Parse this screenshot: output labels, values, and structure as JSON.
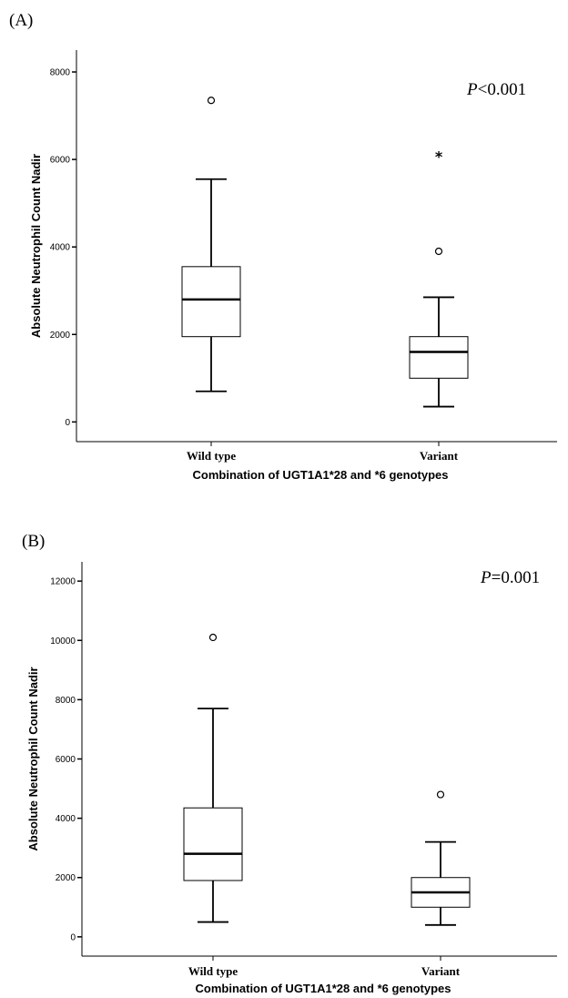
{
  "chart_data": [
    {
      "type": "box",
      "panel_label": "(A)",
      "annotation": {
        "italic": "P",
        "rest": "<0.001"
      },
      "xlabel": "Combination of UGT1A1*28 and *6 genotypes",
      "ylabel": "Absolute Neutrophil Count Nadir",
      "ylim": [
        -450,
        8500
      ],
      "yticks": [
        0,
        2000,
        4000,
        6000,
        8000
      ],
      "categories": [
        "Wild type",
        "Variant"
      ],
      "boxes": [
        {
          "category": "Wild type",
          "whisker_low": 700,
          "q1": 1950,
          "median": 2800,
          "q3": 3550,
          "whisker_high": 5550,
          "outliers": [
            {
              "value": 7350,
              "symbol": "circle"
            }
          ]
        },
        {
          "category": "Variant",
          "whisker_low": 350,
          "q1": 1000,
          "median": 1600,
          "q3": 1950,
          "whisker_high": 2850,
          "outliers": [
            {
              "value": 3900,
              "symbol": "circle"
            },
            {
              "value": 6100,
              "symbol": "star"
            }
          ]
        }
      ]
    },
    {
      "type": "box",
      "panel_label": "(B)",
      "annotation": {
        "italic": "P",
        "rest": "=0.001"
      },
      "xlabel": "Combination of UGT1A1*28 and *6 genotypes",
      "ylabel": "Absolute Neutrophil Count Nadir",
      "ylim": [
        -650,
        12650
      ],
      "yticks": [
        0,
        2000,
        4000,
        6000,
        8000,
        10000,
        12000
      ],
      "categories": [
        "Wild type",
        "Variant"
      ],
      "boxes": [
        {
          "category": "Wild type",
          "whisker_low": 500,
          "q1": 1900,
          "median": 2800,
          "q3": 4350,
          "whisker_high": 7700,
          "outliers": [
            {
              "value": 10100,
              "symbol": "circle"
            }
          ]
        },
        {
          "category": "Variant",
          "whisker_low": 400,
          "q1": 1000,
          "median": 1500,
          "q3": 2000,
          "whisker_high": 3200,
          "outliers": [
            {
              "value": 4800,
              "symbol": "circle"
            }
          ]
        }
      ]
    }
  ]
}
